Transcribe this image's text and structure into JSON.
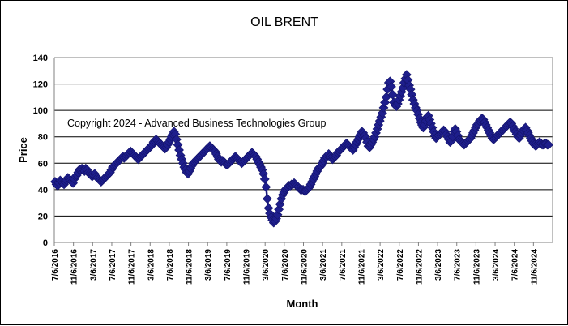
{
  "chart_data": {
    "type": "line",
    "title": "OIL BRENT",
    "xlabel": "Month",
    "ylabel": "Price",
    "annotation": "Copyright 2024 - Advanced Business Technologies Group",
    "ylim": [
      0,
      140
    ],
    "yticks": [
      0,
      20,
      40,
      60,
      80,
      100,
      120,
      140
    ],
    "grid": true,
    "legend": "none",
    "colors": {
      "series": "#1c1c7c",
      "marker": "#1e1e8c",
      "grid": "#000000",
      "axis": "#808080"
    },
    "xtick_labels": [
      "7/6/2016",
      "11/6/2016",
      "3/6/2017",
      "7/6/2017",
      "11/6/2017",
      "3/6/2018",
      "7/6/2018",
      "11/6/2018",
      "3/6/2019",
      "7/6/2019",
      "11/6/2019",
      "3/6/2020",
      "7/6/2020",
      "11/6/2020",
      "3/6/2021",
      "7/6/2021",
      "11/6/2021",
      "3/6/2022",
      "7/6/2022",
      "11/6/2022",
      "3/6/2023",
      "7/6/2023",
      "11/6/2023",
      "3/6/2024",
      "7/6/2024",
      "11/6/2024"
    ],
    "series": [
      {
        "values": [
          46,
          44,
          43,
          45,
          47,
          46,
          45,
          44,
          46,
          47,
          49,
          48,
          47,
          46,
          45,
          48,
          50,
          51,
          53,
          55,
          55,
          56,
          55,
          54,
          56,
          55,
          53,
          52,
          51,
          50,
          51,
          52,
          50,
          49,
          48,
          47,
          46,
          47,
          48,
          49,
          50,
          51,
          52,
          53,
          55,
          57,
          58,
          59,
          60,
          61,
          62,
          63,
          64,
          65,
          64,
          65,
          66,
          67,
          68,
          69,
          68,
          67,
          66,
          65,
          64,
          63,
          64,
          65,
          66,
          67,
          68,
          69,
          70,
          71,
          72,
          73,
          74,
          76,
          77,
          78,
          77,
          76,
          75,
          74,
          73,
          72,
          71,
          72,
          74,
          76,
          78,
          80,
          82,
          84,
          82,
          78,
          74,
          70,
          66,
          63,
          60,
          57,
          55,
          53,
          52,
          54,
          56,
          58,
          60,
          61,
          62,
          63,
          64,
          65,
          66,
          67,
          68,
          69,
          70,
          71,
          72,
          73,
          72,
          71,
          70,
          69,
          67,
          65,
          63,
          62,
          61,
          62,
          61,
          60,
          59,
          59,
          60,
          61,
          62,
          63,
          64,
          65,
          64,
          63,
          62,
          61,
          60,
          61,
          62,
          63,
          64,
          65,
          66,
          67,
          68,
          67,
          66,
          65,
          63,
          61,
          59,
          57,
          55,
          52,
          48,
          42,
          33,
          26,
          22,
          19,
          17,
          15,
          16,
          18,
          21,
          25,
          29,
          33,
          36,
          38,
          40,
          41,
          42,
          43,
          43,
          44,
          44,
          45,
          44,
          43,
          42,
          41,
          40,
          40,
          40,
          39,
          39,
          40,
          41,
          42,
          44,
          46,
          48,
          50,
          52,
          54,
          56,
          57,
          58,
          60,
          62,
          64,
          65,
          66,
          67,
          65,
          64,
          63,
          64,
          65,
          66,
          68,
          69,
          70,
          71,
          72,
          73,
          74,
          75,
          74,
          73,
          72,
          71,
          70,
          72,
          74,
          76,
          78,
          80,
          82,
          84,
          83,
          81,
          79,
          76,
          73,
          72,
          74,
          76,
          78,
          80,
          83,
          86,
          89,
          92,
          95,
          98,
          102,
          106,
          110,
          116,
          121,
          122,
          118,
          112,
          106,
          104,
          103,
          105,
          108,
          111,
          114,
          117,
          121,
          124,
          127,
          123,
          119,
          116,
          112,
          108,
          105,
          102,
          100,
          97,
          94,
          91,
          89,
          87,
          89,
          92,
          95,
          96,
          93,
          90,
          87,
          84,
          81,
          79,
          80,
          81,
          82,
          83,
          84,
          85,
          84,
          82,
          80,
          78,
          76,
          77,
          80,
          84,
          86,
          84,
          81,
          78,
          77,
          76,
          75,
          74,
          75,
          76,
          77,
          78,
          79,
          81,
          83,
          85,
          87,
          89,
          90,
          92,
          93,
          94,
          93,
          91,
          89,
          87,
          85,
          83,
          81,
          79,
          78,
          79,
          80,
          81,
          82,
          83,
          84,
          85,
          86,
          87,
          88,
          89,
          90,
          91,
          90,
          88,
          86,
          84,
          82,
          80,
          79,
          81,
          83,
          85,
          86,
          87,
          85,
          83,
          81,
          79,
          77,
          75,
          74,
          73,
          74,
          75,
          76,
          75,
          74,
          74,
          75,
          75,
          74,
          74
        ]
      }
    ]
  }
}
